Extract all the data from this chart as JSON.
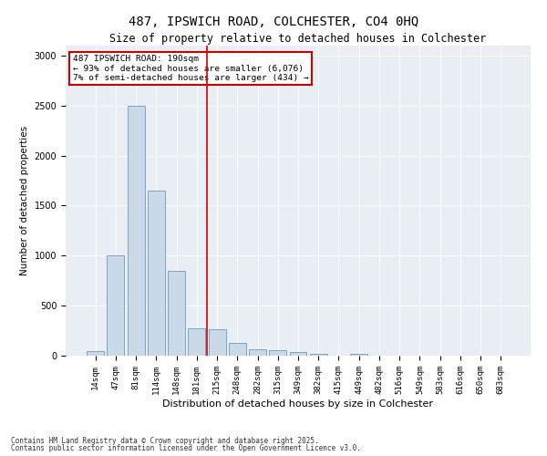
{
  "title": "487, IPSWICH ROAD, COLCHESTER, CO4 0HQ",
  "subtitle": "Size of property relative to detached houses in Colchester",
  "xlabel": "Distribution of detached houses by size in Colchester",
  "ylabel": "Number of detached properties",
  "footer1": "Contains HM Land Registry data © Crown copyright and database right 2025.",
  "footer2": "Contains public sector information licensed under the Open Government Licence v3.0.",
  "annotation_title": "487 IPSWICH ROAD: 190sqm",
  "annotation_line1": "← 93% of detached houses are smaller (6,076)",
  "annotation_line2": "7% of semi-detached houses are larger (434) →",
  "bar_color": "#c9d9e8",
  "bar_edge_color": "#5a8ab0",
  "vline_color": "#cc0000",
  "annotation_border_color": "#cc0000",
  "background_color": "#e8eef4",
  "categories": [
    "14sqm",
    "47sqm",
    "81sqm",
    "114sqm",
    "148sqm",
    "181sqm",
    "215sqm",
    "248sqm",
    "282sqm",
    "315sqm",
    "349sqm",
    "382sqm",
    "415sqm",
    "449sqm",
    "482sqm",
    "516sqm",
    "549sqm",
    "583sqm",
    "616sqm",
    "650sqm",
    "683sqm"
  ],
  "values": [
    50,
    1000,
    2500,
    1650,
    850,
    270,
    260,
    130,
    65,
    55,
    40,
    20,
    0,
    20,
    0,
    0,
    0,
    0,
    0,
    0,
    0
  ],
  "vline_position": 5.5,
  "ylim": [
    0,
    3100
  ],
  "yticks": [
    0,
    500,
    1000,
    1500,
    2000,
    2500,
    3000
  ],
  "figsize": [
    6.0,
    5.0
  ],
  "dpi": 100
}
